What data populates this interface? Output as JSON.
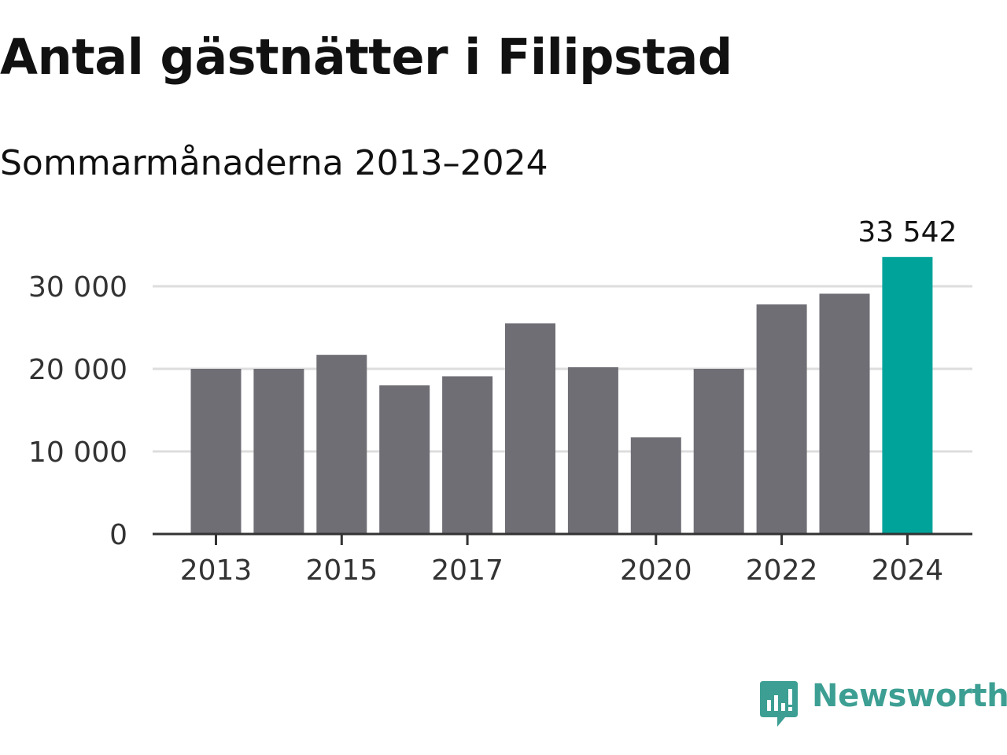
{
  "title": "Antal gästnätter i Filipstad",
  "subtitle": "Sommarmånaderna 2013–2024",
  "brand": {
    "name": "Newsworthy",
    "icon": "newsworthy-logo-icon",
    "color": "#3d9f93"
  },
  "colors": {
    "bar": "#6f6e75",
    "highlight": "#00a39a",
    "grid": "#dddddd",
    "axis": "#333333",
    "text": "#333333"
  },
  "chart_data": {
    "type": "bar",
    "categories": [
      "2013",
      "2014",
      "2015",
      "2016",
      "2017",
      "2018",
      "2019",
      "2020",
      "2021",
      "2022",
      "2023",
      "2024"
    ],
    "values": [
      20000,
      20000,
      21700,
      18000,
      19100,
      25500,
      20200,
      11700,
      20000,
      27800,
      29100,
      33542
    ],
    "x_tick_labels": [
      "2013",
      "2015",
      "2017",
      "2020",
      "2022",
      "2024"
    ],
    "y_ticks": [
      0,
      10000,
      20000,
      30000
    ],
    "y_tick_labels": [
      "0",
      "10 000",
      "20 000",
      "30 000"
    ],
    "ylim": [
      0,
      33542
    ],
    "highlight_index": 11,
    "data_labels": [
      {
        "index": 11,
        "text": "33 542"
      }
    ],
    "grid": true,
    "legend": "none",
    "xlabel": "",
    "ylabel": ""
  }
}
